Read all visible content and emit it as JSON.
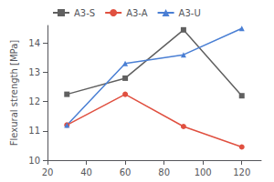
{
  "chart_data": {
    "type": "line",
    "ylabel": "Flexural strength [MPa]",
    "x": [
      30,
      60,
      90,
      120
    ],
    "series": [
      {
        "name": "A3-S",
        "color": "#606060",
        "marker": "square",
        "values": [
          12.25,
          12.8,
          14.45,
          12.2
        ]
      },
      {
        "name": "A3-A",
        "color": "#e05040",
        "marker": "circle",
        "values": [
          11.2,
          12.25,
          11.15,
          10.45
        ]
      },
      {
        "name": "A3-U",
        "color": "#4a7fd4",
        "marker": "triangle",
        "values": [
          11.2,
          13.3,
          13.6,
          14.5
        ]
      }
    ],
    "xlim": [
      20,
      130
    ],
    "ylim": [
      10,
      14.6
    ],
    "xticks": [
      20,
      40,
      60,
      80,
      100,
      120
    ],
    "yticks": [
      10,
      11,
      12,
      13,
      14
    ],
    "grid": false,
    "legend": "upper left"
  }
}
